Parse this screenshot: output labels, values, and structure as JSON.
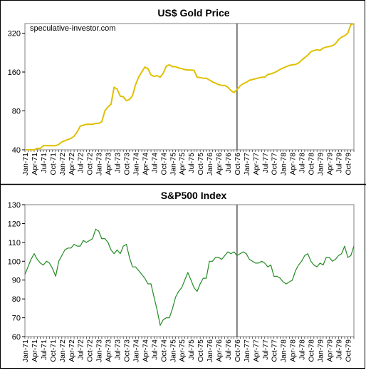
{
  "chart_data": [
    {
      "type": "line",
      "title": "US$ Gold Price",
      "watermark": "speculative-investor.com",
      "yscale": "log",
      "ylim": [
        40,
        380
      ],
      "yticks": [
        "40",
        "80",
        "160",
        "320"
      ],
      "ytick_values": [
        40,
        80,
        160,
        320
      ],
      "xlim": [
        "Jan-71",
        "Dec-79"
      ],
      "xticks": [
        "Jan-71",
        "Apr-71",
        "Jul-71",
        "Oct-71",
        "Jan-72",
        "Apr-72",
        "Jul-72",
        "Oct-72",
        "Jan-73",
        "Apr-73",
        "Jul-73",
        "Oct-73",
        "Jan-74",
        "Apr-74",
        "Jul-74",
        "Oct-74",
        "Jan-75",
        "Apr-75",
        "Jul-75",
        "Oct-75",
        "Jan-76",
        "Apr-76",
        "Jul-76",
        "Oct-76",
        "Jan-77",
        "Apr-77",
        "Jul-77",
        "Oct-77",
        "Jan-78",
        "Apr-78",
        "Jul-78",
        "Oct-78",
        "Jan-79",
        "Apr-79",
        "Jul-79",
        "Oct-79"
      ],
      "grid": false,
      "marker_line": "Oct-76",
      "series_color": "#e0c000",
      "series": [
        {
          "x": [
            "Jan-71",
            "Feb-71",
            "Mar-71",
            "Apr-71",
            "May-71",
            "Jun-71",
            "Jul-71",
            "Aug-71",
            "Sep-71",
            "Oct-71",
            "Nov-71",
            "Dec-71",
            "Jan-72",
            "Feb-72",
            "Mar-72",
            "Apr-72",
            "May-72",
            "Jun-72",
            "Jul-72",
            "Aug-72",
            "Sep-72",
            "Oct-72",
            "Nov-72",
            "Dec-72",
            "Jan-73",
            "Feb-73",
            "Mar-73",
            "Apr-73",
            "May-73",
            "Jun-73",
            "Jul-73",
            "Aug-73",
            "Sep-73",
            "Oct-73",
            "Nov-73",
            "Dec-73",
            "Jan-74",
            "Feb-74",
            "Mar-74",
            "Apr-74",
            "May-74",
            "Jun-74",
            "Jul-74",
            "Aug-74",
            "Sep-74",
            "Oct-74",
            "Nov-74",
            "Dec-74",
            "Jan-75",
            "Feb-75",
            "Mar-75",
            "Apr-75",
            "May-75",
            "Jun-75",
            "Jul-75",
            "Aug-75",
            "Sep-75",
            "Oct-75",
            "Nov-75",
            "Dec-75",
            "Jan-76",
            "Feb-76",
            "Mar-76",
            "Apr-76",
            "May-76",
            "Jun-76",
            "Jul-76",
            "Aug-76",
            "Sep-76",
            "Oct-76",
            "Nov-76",
            "Dec-76",
            "Jan-77",
            "Feb-77",
            "Mar-77",
            "Apr-77",
            "May-77",
            "Jun-77",
            "Jul-77",
            "Aug-77",
            "Sep-77",
            "Oct-77",
            "Nov-77",
            "Dec-77",
            "Jan-78",
            "Feb-78",
            "Mar-78",
            "Apr-78",
            "May-78",
            "Jun-78",
            "Jul-78",
            "Aug-78",
            "Sep-78",
            "Oct-78",
            "Nov-78",
            "Dec-78",
            "Jan-79",
            "Feb-79",
            "Mar-79",
            "Apr-79",
            "May-79",
            "Jun-79",
            "Jul-79",
            "Aug-79",
            "Sep-79",
            "Oct-79",
            "Nov-79",
            "Dec-79"
          ],
          "values": [
            38,
            39,
            40,
            40,
            41,
            41,
            43,
            43,
            43,
            43,
            43,
            44,
            46,
            47,
            48,
            49,
            51,
            55,
            61,
            62,
            63,
            63,
            63,
            64,
            64,
            66,
            80,
            86,
            90,
            122,
            118,
            104,
            103,
            96,
            98,
            105,
            128,
            147,
            160,
            175,
            170,
            152,
            148,
            150,
            146,
            157,
            178,
            182,
            176,
            176,
            172,
            170,
            167,
            166,
            166,
            165,
            146,
            145,
            143,
            143,
            139,
            134,
            131,
            128,
            126,
            126,
            122,
            115,
            111,
            117,
            125,
            130,
            133,
            138,
            140,
            142,
            144,
            146,
            146,
            153,
            155,
            158,
            162,
            168,
            172,
            176,
            180,
            182,
            183,
            188,
            198,
            207,
            216,
            230,
            235,
            238,
            236,
            245,
            250,
            252,
            256,
            265,
            285,
            298,
            305,
            320,
            372,
            380
          ]
        }
      ]
    },
    {
      "type": "line",
      "title": "S&P500 Index",
      "ylim": [
        60,
        130
      ],
      "yticks": [
        "60",
        "70",
        "80",
        "90",
        "100",
        "110",
        "120",
        "130"
      ],
      "ytick_values": [
        60,
        70,
        80,
        90,
        100,
        110,
        120,
        130
      ],
      "xlim": [
        "Jan-71",
        "Dec-79"
      ],
      "xticks": [
        "Jan-71",
        "Apr-71",
        "Jul-71",
        "Oct-71",
        "Jan-72",
        "Apr-72",
        "Jul-72",
        "Oct-72",
        "Jan-73",
        "Apr-73",
        "Jul-73",
        "Oct-73",
        "Jan-74",
        "Apr-74",
        "Jul-74",
        "Oct-74",
        "Jan-75",
        "Apr-75",
        "Jul-75",
        "Oct-75",
        "Jan-76",
        "Apr-76",
        "Jul-76",
        "Oct-76",
        "Jan-77",
        "Apr-77",
        "Jul-77",
        "Oct-77",
        "Jan-78",
        "Apr-78",
        "Jul-78",
        "Oct-78",
        "Jan-79",
        "Apr-79",
        "Jul-79",
        "Oct-79"
      ],
      "grid": false,
      "marker_line": "Oct-76",
      "series_color": "#228b22",
      "series": [
        {
          "x": [
            "Jan-71",
            "Feb-71",
            "Mar-71",
            "Apr-71",
            "May-71",
            "Jun-71",
            "Jul-71",
            "Aug-71",
            "Sep-71",
            "Oct-71",
            "Nov-71",
            "Dec-71",
            "Jan-72",
            "Feb-72",
            "Mar-72",
            "Apr-72",
            "May-72",
            "Jun-72",
            "Jul-72",
            "Aug-72",
            "Sep-72",
            "Oct-72",
            "Nov-72",
            "Dec-72",
            "Jan-73",
            "Feb-73",
            "Mar-73",
            "Apr-73",
            "May-73",
            "Jun-73",
            "Jul-73",
            "Aug-73",
            "Sep-73",
            "Oct-73",
            "Nov-73",
            "Dec-73",
            "Jan-74",
            "Feb-74",
            "Mar-74",
            "Apr-74",
            "May-74",
            "Jun-74",
            "Jul-74",
            "Aug-74",
            "Sep-74",
            "Oct-74",
            "Nov-74",
            "Dec-74",
            "Jan-75",
            "Feb-75",
            "Mar-75",
            "Apr-75",
            "May-75",
            "Jun-75",
            "Jul-75",
            "Aug-75",
            "Sep-75",
            "Oct-75",
            "Nov-75",
            "Dec-75",
            "Jan-76",
            "Feb-76",
            "Mar-76",
            "Apr-76",
            "May-76",
            "Jun-76",
            "Jul-76",
            "Aug-76",
            "Sep-76",
            "Oct-76",
            "Nov-76",
            "Dec-76",
            "Jan-77",
            "Feb-77",
            "Mar-77",
            "Apr-77",
            "May-77",
            "Jun-77",
            "Jul-77",
            "Aug-77",
            "Sep-77",
            "Oct-77",
            "Nov-77",
            "Dec-77",
            "Jan-78",
            "Feb-78",
            "Mar-78",
            "Apr-78",
            "May-78",
            "Jun-78",
            "Jul-78",
            "Aug-78",
            "Sep-78",
            "Oct-78",
            "Nov-78",
            "Dec-78",
            "Jan-79",
            "Feb-79",
            "Mar-79",
            "Apr-79",
            "May-79",
            "Jun-79",
            "Jul-79",
            "Aug-79",
            "Sep-79",
            "Oct-79",
            "Nov-79",
            "Dec-79"
          ],
          "values": [
            93,
            97,
            101,
            104,
            101,
            99,
            98,
            100,
            99,
            96,
            92,
            100,
            103,
            106,
            107,
            107,
            109,
            108,
            108,
            111,
            110,
            111,
            112,
            117,
            116,
            112,
            112,
            110,
            106,
            104,
            106,
            104,
            108,
            109,
            102,
            97,
            97,
            95,
            93,
            91,
            88,
            88,
            81,
            74,
            66,
            69,
            70,
            70,
            75,
            81,
            84,
            86,
            90,
            94,
            90,
            86,
            84,
            88,
            91,
            91,
            100,
            100,
            102,
            102,
            101,
            103,
            105,
            104,
            105,
            103,
            104,
            105,
            104,
            101,
            100,
            99,
            99,
            100,
            99,
            97,
            98,
            92,
            92,
            91,
            89,
            88,
            89,
            90,
            95,
            98,
            100,
            103,
            104,
            100,
            98,
            97,
            99,
            98,
            102,
            102,
            100,
            101,
            103,
            104,
            108,
            102,
            103,
            108
          ]
        }
      ]
    }
  ]
}
